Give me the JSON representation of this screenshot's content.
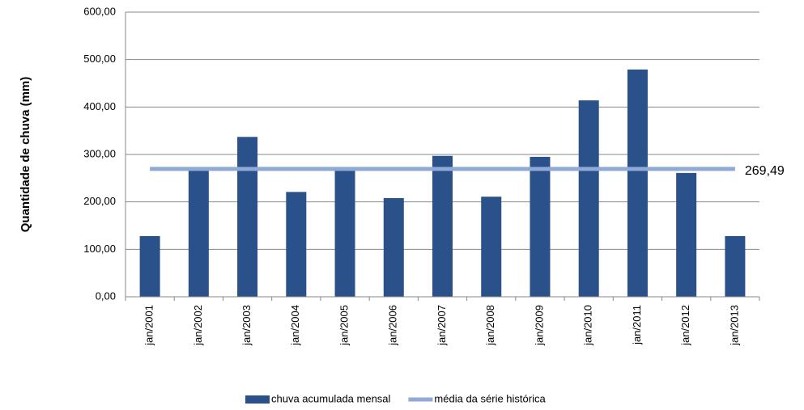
{
  "chart_data": {
    "type": "bar_line",
    "y_axis_label": "Quantidade de chuva (mm)",
    "categories": [
      "jan/2001",
      "jan/2002",
      "jan/2003",
      "jan/2004",
      "jan/2005",
      "jan/2006",
      "jan/2007",
      "jan/2008",
      "jan/2009",
      "jan/2010",
      "jan/2011",
      "jan/2012",
      "jan/2013"
    ],
    "series": [
      {
        "name": "chuva acumulada mensal",
        "type": "bar",
        "color": "#2a5189",
        "values": [
          128,
          268,
          337,
          221,
          268,
          208,
          297,
          211,
          295,
          414,
          479,
          261,
          128
        ]
      },
      {
        "name": "média da série histórica",
        "type": "line",
        "color": "#8faad6",
        "values": [
          269.49,
          269.49,
          269.49,
          269.49,
          269.49,
          269.49,
          269.49,
          269.49,
          269.49,
          269.49,
          269.49,
          269.49,
          269.49
        ],
        "value_labels": [
          null,
          null,
          null,
          null,
          null,
          null,
          null,
          null,
          null,
          null,
          null,
          null,
          "269,49"
        ]
      }
    ],
    "ylim": [
      0,
      600
    ],
    "yticks": [
      {
        "value": 0,
        "label": "0,00"
      },
      {
        "value": 100,
        "label": "100,00"
      },
      {
        "value": 200,
        "label": "200,00"
      },
      {
        "value": 300,
        "label": "300,00"
      },
      {
        "value": 400,
        "label": "400,00"
      },
      {
        "value": 500,
        "label": "500,00"
      },
      {
        "value": 600,
        "label": "600,00"
      }
    ],
    "grid": true,
    "legend": "bottom"
  }
}
